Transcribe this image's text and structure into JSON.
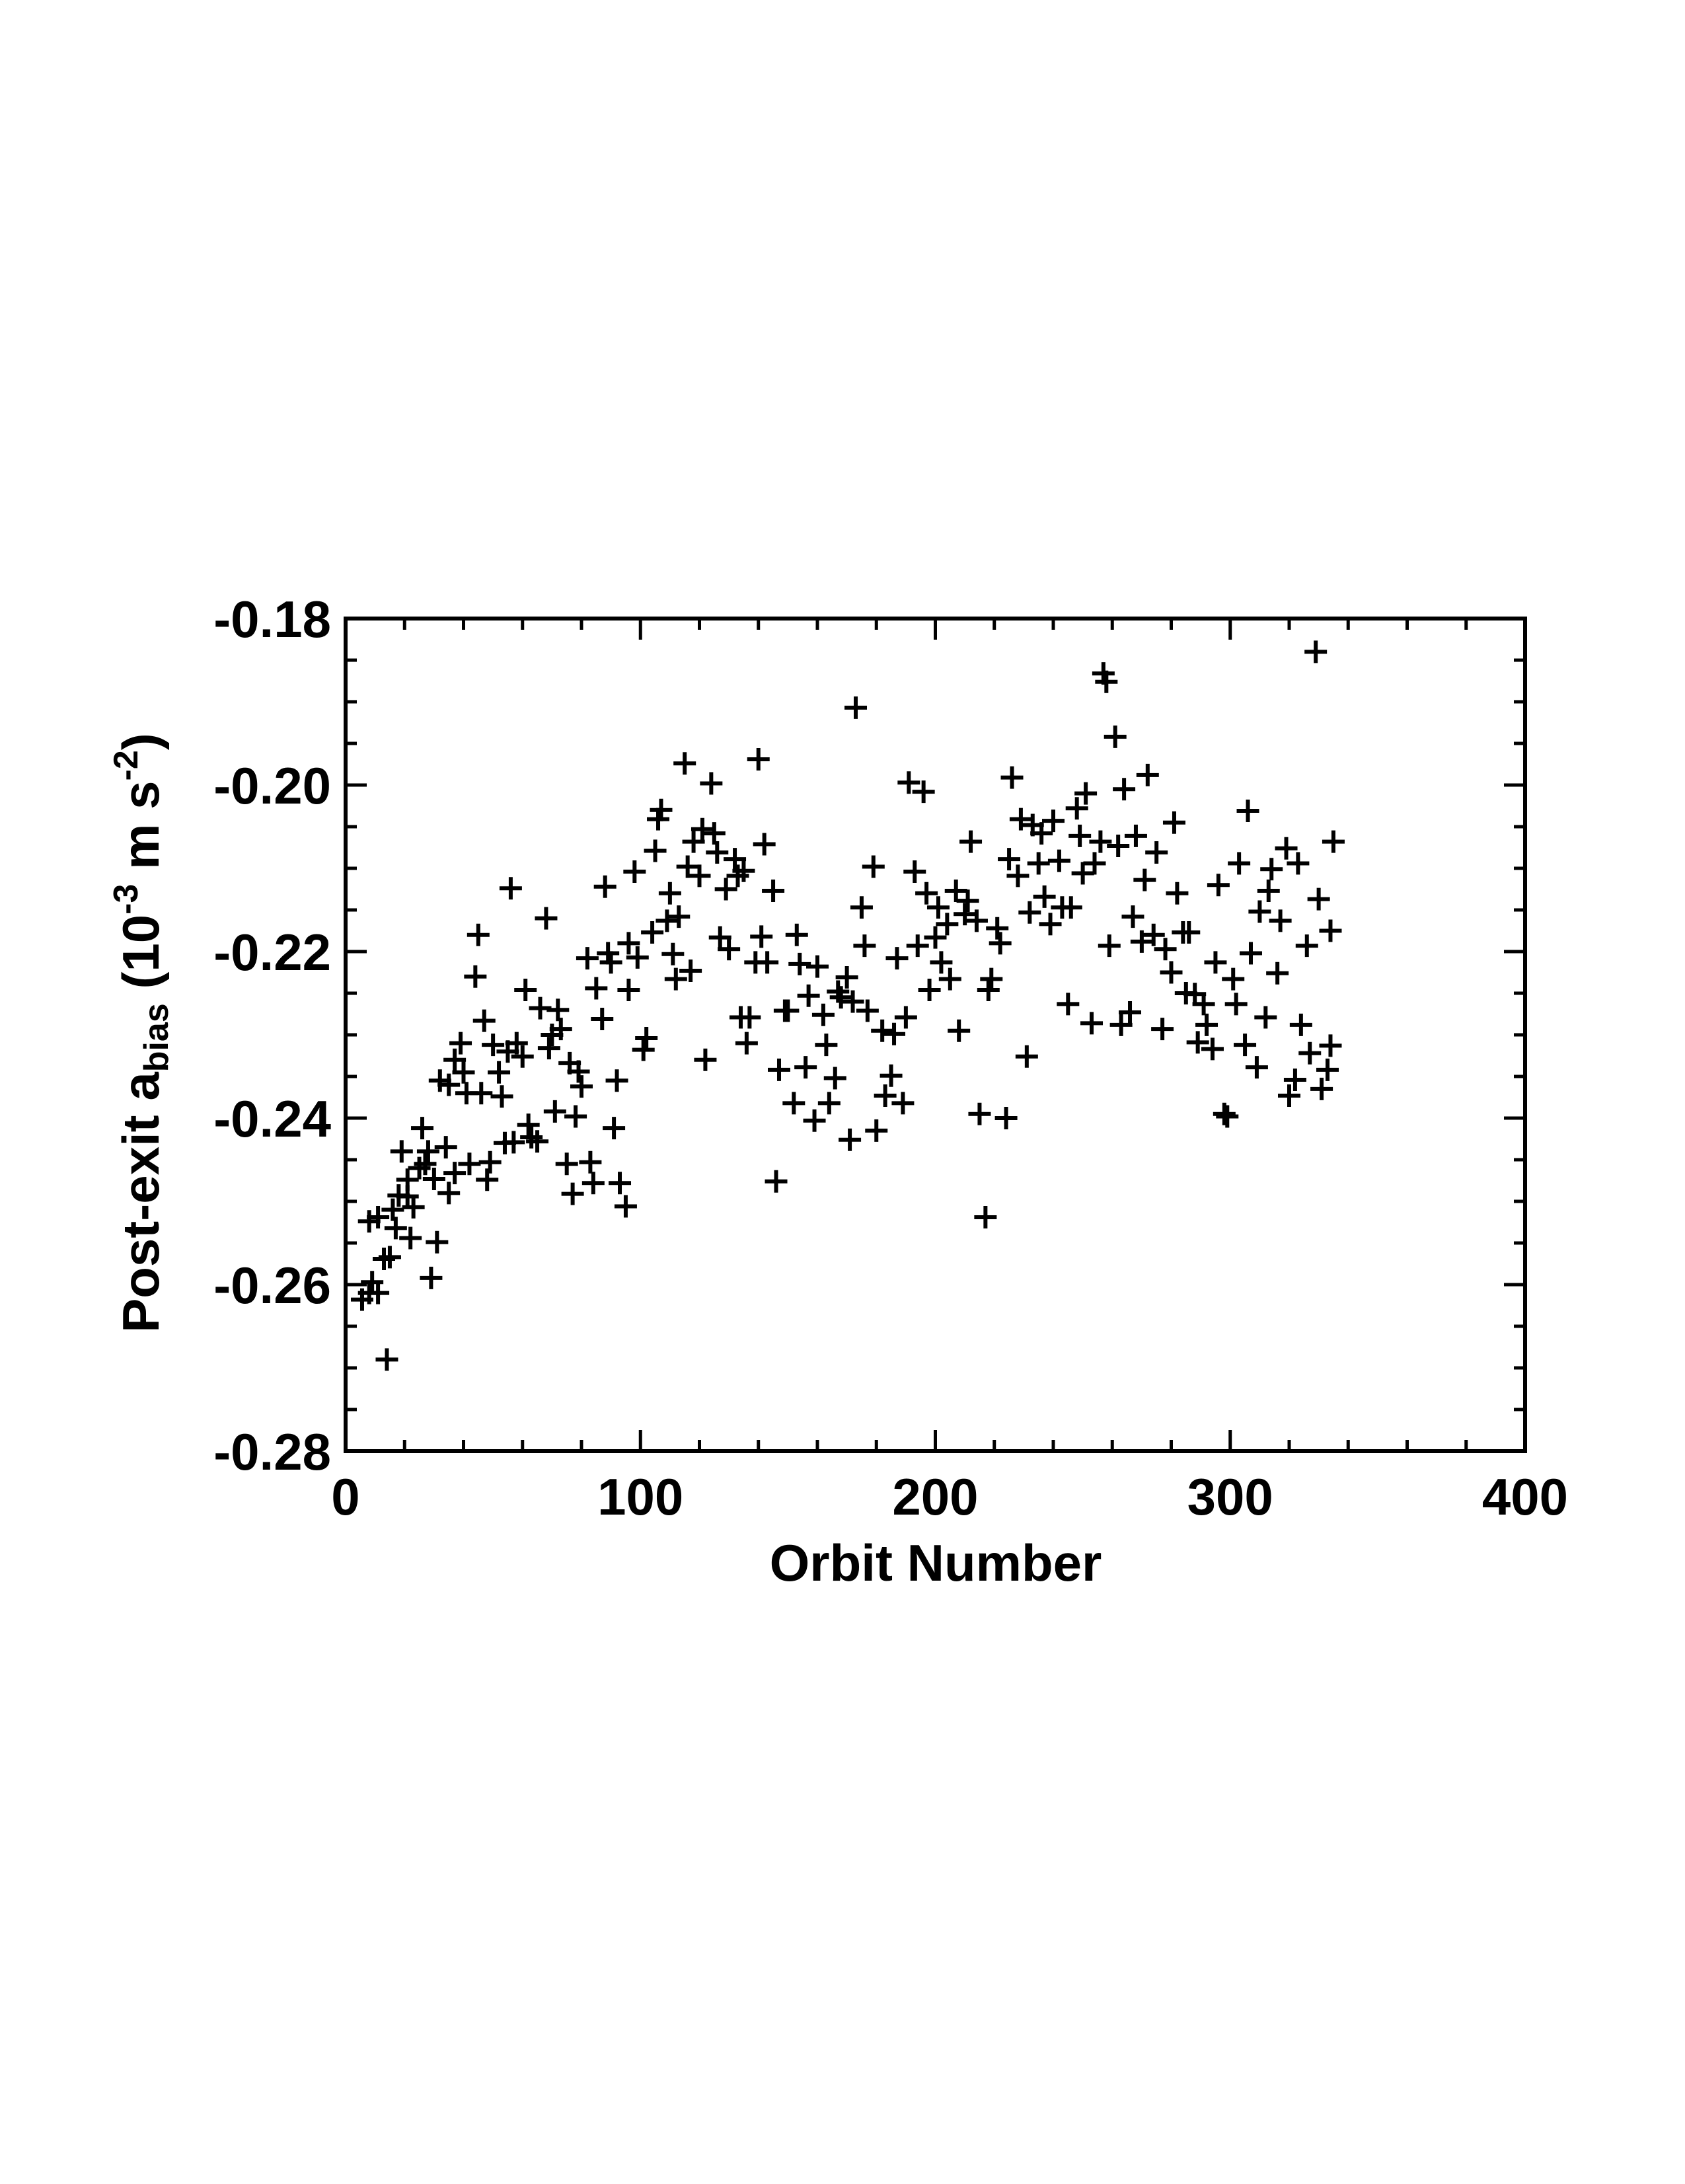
{
  "chart_data": {
    "type": "scatter",
    "marker": "+",
    "color": "#000000",
    "xlabel": "Orbit Number",
    "ylabel": [
      "Post-exit a",
      "bias",
      " (10",
      "-3",
      " m s",
      "-2",
      ")"
    ],
    "xlim": [
      0,
      400
    ],
    "ylim": [
      -0.28,
      -0.18
    ],
    "xticks": [
      0,
      100,
      200,
      300,
      400
    ],
    "yticks": [
      -0.28,
      -0.26,
      -0.24,
      -0.22,
      {
        "value": -0.2,
        "label": "-0.20"
      },
      -0.18
    ],
    "xminorticks": [
      20,
      40,
      60,
      80,
      120,
      140,
      160,
      180,
      220,
      240,
      260,
      280,
      320,
      340,
      360,
      380
    ],
    "yminorticks": [
      -0.275,
      -0.27,
      -0.265,
      -0.255,
      -0.25,
      -0.245,
      -0.235,
      -0.23,
      -0.225,
      -0.215,
      -0.21,
      -0.205,
      -0.195,
      -0.19,
      -0.185
    ],
    "x": [
      5.6,
      8,
      9,
      11,
      8,
      11,
      13,
      14,
      15,
      16,
      18,
      17,
      19,
      21,
      21,
      22,
      23,
      25,
      26,
      27,
      28,
      29,
      30,
      31,
      32,
      34,
      35,
      35,
      37,
      37,
      39,
      40,
      41,
      42,
      44,
      45,
      46,
      47,
      48,
      49,
      50,
      52,
      53,
      54,
      55,
      56,
      57,
      58,
      60,
      61,
      62,
      63,
      65,
      66,
      68,
      69,
      70,
      71,
      72,
      73,
      75,
      76,
      77,
      78,
      79,
      80,
      82,
      83,
      84,
      85,
      87,
      88,
      89,
      90,
      91,
      92,
      93,
      95,
      96,
      96,
      98,
      99,
      101,
      102,
      104,
      105,
      106,
      107,
      109,
      110,
      111,
      112,
      113,
      115,
      116,
      117,
      118,
      120,
      121,
      122,
      124,
      125,
      126,
      127,
      129,
      130,
      132,
      133,
      134,
      135,
      136,
      137,
      139,
      140,
      141,
      142,
      143,
      145,
      146,
      147,
      149,
      150,
      152,
      153,
      154,
      156,
      157,
      159,
      160,
      162,
      163,
      164,
      166,
      167,
      168,
      170,
      171,
      172,
      173,
      175,
      176,
      177,
      179,
      180,
      182,
      183,
      185,
      186,
      187,
      189,
      190,
      191,
      193,
      194,
      196,
      197,
      198,
      200,
      201,
      202,
      204,
      205,
      207,
      208,
      210,
      211,
      212,
      214,
      215,
      217,
      218,
      219,
      221,
      222,
      224,
      225,
      226,
      228,
      229,
      231,
      232,
      233,
      235,
      236,
      237,
      239,
      240,
      242,
      243,
      245,
      246,
      248,
      249,
      250,
      251,
      253,
      254,
      256,
      257,
      258,
      259,
      261,
      262,
      263,
      264,
      266,
      267,
      268,
      270,
      271,
      272,
      274,
      275,
      277,
      278,
      280,
      281,
      282,
      284,
      285,
      286,
      288,
      289,
      291,
      292,
      294,
      295,
      296,
      298,
      299,
      301,
      302,
      303,
      305,
      306,
      307,
      309,
      310,
      312,
      313,
      314,
      316,
      317,
      319,
      320,
      322,
      323,
      324,
      326,
      327,
      329,
      330,
      331,
      333,
      334,
      334,
      335
    ],
    "values": [
      -0.2618,
      -0.261,
      -0.2597,
      -0.261,
      -0.2524,
      -0.2519,
      -0.2569,
      -0.269,
      -0.2567,
      -0.251,
      -0.2493,
      -0.2532,
      -0.244,
      -0.2474,
      -0.2494,
      -0.2544,
      -0.2507,
      -0.246,
      -0.2412,
      -0.2455,
      -0.244,
      -0.2592,
      -0.2473,
      -0.2549,
      -0.2355,
      -0.2435,
      -0.249,
      -0.236,
      -0.2466,
      -0.233,
      -0.231,
      -0.2345,
      -0.237,
      -0.2455,
      -0.223,
      -0.218,
      -0.237,
      -0.2283,
      -0.2474,
      -0.2453,
      -0.2312,
      -0.2345,
      -0.2374,
      -0.243,
      -0.232,
      -0.2124,
      -0.2429,
      -0.231,
      -0.2326,
      -0.2246,
      -0.2408,
      -0.2423,
      -0.2428,
      -0.2268,
      -0.216,
      -0.2316,
      -0.23,
      -0.2392,
      -0.227,
      -0.2293,
      -0.2455,
      -0.2334,
      -0.2491,
      -0.2398,
      -0.2344,
      -0.2362,
      -0.2208,
      -0.2453,
      -0.2478,
      -0.2244,
      -0.2281,
      -0.2122,
      -0.2202,
      -0.2213,
      -0.2412,
      -0.2355,
      -0.2478,
      -0.2506,
      -0.219,
      -0.2246,
      -0.2104,
      -0.2207,
      -0.2318,
      -0.2304,
      -0.2177,
      -0.2079,
      -0.2041,
      -0.203,
      -0.2163,
      -0.213,
      -0.2203,
      -0.2233,
      -0.2158,
      -0.1974,
      -0.2098,
      -0.2223,
      -0.2068,
      -0.2109,
      -0.2053,
      -0.233,
      -0.1998,
      -0.2058,
      -0.2081,
      -0.2183,
      -0.2125,
      -0.2197,
      -0.2089,
      -0.2109,
      -0.2279,
      -0.2103,
      -0.231,
      -0.2279,
      -0.2213,
      -0.1969,
      -0.2182,
      -0.2071,
      -0.2213,
      -0.2127,
      -0.2476,
      -0.2342,
      -0.2271,
      -0.2271,
      -0.2382,
      -0.218,
      -0.2215,
      -0.2339,
      -0.2253,
      -0.2403,
      -0.2218,
      -0.2276,
      -0.2312,
      -0.2382,
      -0.2352,
      -0.2248,
      -0.2255,
      -0.2231,
      -0.2426,
      -0.226,
      -0.1907,
      -0.2147,
      -0.2193,
      -0.2271,
      -0.2098,
      -0.2415,
      -0.2295,
      -0.2373,
      -0.2349,
      -0.2299,
      -0.2208,
      -0.2382,
      -0.2279,
      -0.1997,
      -0.2104,
      -0.2193,
      -0.2008,
      -0.213,
      -0.2246,
      -0.2183,
      -0.2147,
      -0.2213,
      -0.2167,
      -0.2233,
      -0.2127,
      -0.2295,
      -0.2155,
      -0.2139,
      -0.2068,
      -0.2163,
      -0.2395,
      -0.2519,
      -0.2246,
      -0.2233,
      -0.2172,
      -0.219,
      -0.24,
      -0.2089,
      -0.1991,
      -0.2109,
      -0.2041,
      -0.2326,
      -0.2153,
      -0.2048,
      -0.2094,
      -0.2058,
      -0.2134,
      -0.2167,
      -0.2043,
      -0.2091,
      -0.2147,
      -0.2263,
      -0.2147,
      -0.2028,
      -0.2061,
      -0.2106,
      -0.201,
      -0.2286,
      -0.2094,
      -0.2068,
      -0.1866,
      -0.1876,
      -0.2193,
      -0.1942,
      -0.2073,
      -0.2288,
      -0.2005,
      -0.2273,
      -0.2158,
      -0.2061,
      -0.2188,
      -0.2114,
      -0.1988,
      -0.218,
      -0.2081,
      -0.2293,
      -0.2197,
      -0.2225,
      -0.2045,
      -0.213,
      -0.2177,
      -0.225,
      -0.2177,
      -0.2251,
      -0.2309,
      -0.2263,
      -0.2288,
      -0.2317,
      -0.2213,
      -0.212,
      -0.2395,
      -0.2398,
      -0.2233,
      -0.2263,
      -0.2094,
      -0.2312,
      -0.2031,
      -0.2202,
      -0.2339,
      -0.2152,
      -0.2279,
      -0.2127,
      -0.2101,
      -0.2226,
      -0.2163,
      -0.2076,
      -0.2373,
      -0.2354,
      -0.2094,
      -0.2288,
      -0.2193,
      -0.2322,
      -0.184,
      -0.2137,
      -0.2365,
      -0.2342,
      -0.2175,
      -0.2313,
      -0.2068
    ]
  }
}
